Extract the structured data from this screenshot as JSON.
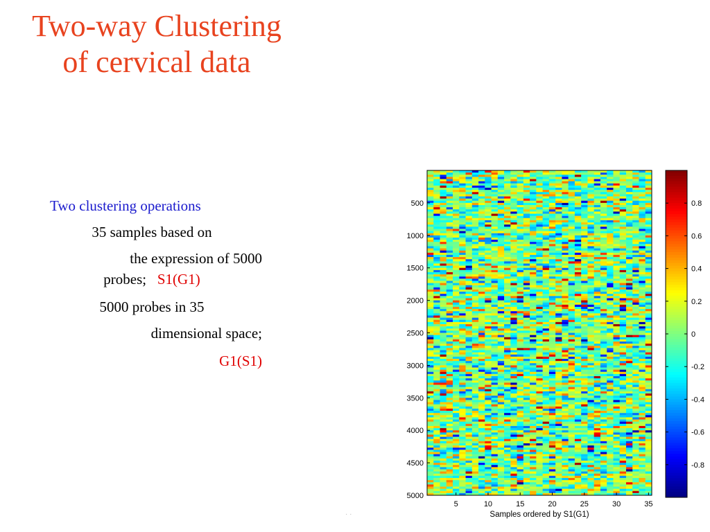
{
  "slide": {
    "title_line1": "Two-way Clustering",
    "title_line2": "of cervical data",
    "bullets": {
      "intro_blue": "Two  clustering operations",
      "line2": "35 samples based on",
      "line3": "the expression of 5000",
      "line4_a": "probes;",
      "line4_red": "S1(G1)",
      "line5": "5000 probes in 35",
      "line6": "dimensional space;",
      "line7_red": "G1(S1)"
    }
  },
  "colors": {
    "title": "#e8431f",
    "blue_text": "#1a1acd",
    "red_text": "#e00000"
  },
  "chart_data": {
    "type": "heatmap",
    "xlabel": "Samples ordered by S1(G1)",
    "ylabel": "",
    "x_ticks": [
      5,
      10,
      15,
      20,
      25,
      30,
      35
    ],
    "y_ticks": [
      500,
      1000,
      1500,
      2000,
      2500,
      3000,
      3500,
      4000,
      4500,
      5000
    ],
    "xlim": [
      0.5,
      35.5
    ],
    "ylim": [
      0,
      5000
    ],
    "n_samples": 35,
    "n_probes": 5000,
    "colorbar_ticks": [
      0.8,
      0.6,
      0.4,
      0.2,
      0,
      -0.2,
      -0.4,
      -0.6,
      -0.8
    ],
    "colorbar_labels": [
      "0.8",
      "0.6",
      "0.4",
      "0.2",
      "0",
      "-0.2",
      "-0.4",
      "-0.6",
      "-0.8"
    ],
    "clim": [
      -1,
      1
    ],
    "colormap": "jet"
  }
}
